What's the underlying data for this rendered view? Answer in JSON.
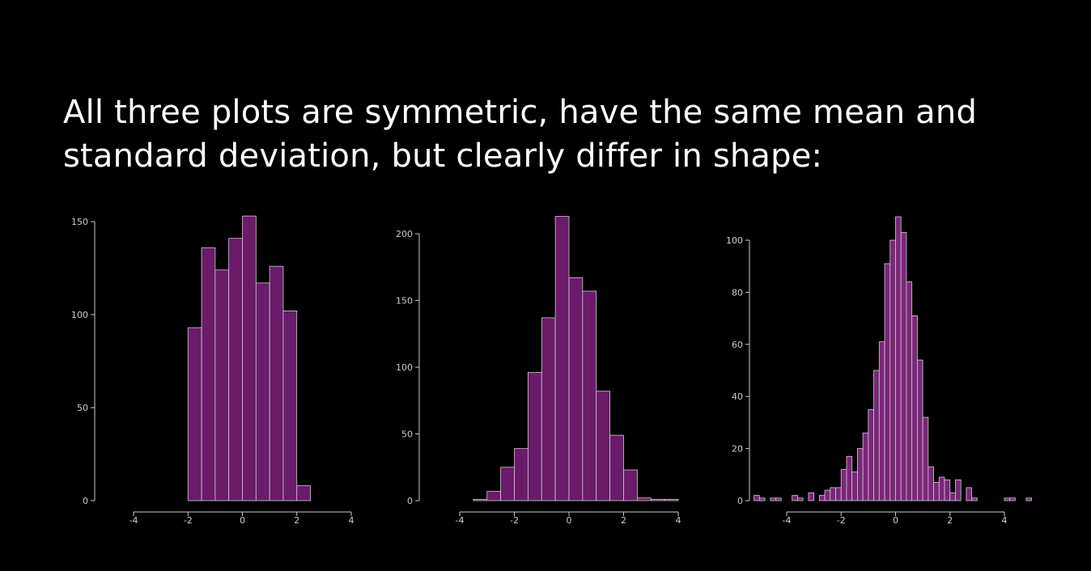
{
  "heading": "All three plots are symmetric, have the same mean and standard deviation, but clearly differ in shape:",
  "colors": {
    "background": "#000000",
    "bar_fill": "#6a1b6a",
    "bar_fill_light": "#7b267b",
    "bar_stroke": "#cccccc",
    "axis": "#cccccc"
  },
  "chart_data": [
    {
      "type": "bar",
      "title": "",
      "xlabel": "",
      "ylabel": "",
      "xlim": [
        -4,
        4
      ],
      "ylim": [
        0,
        150
      ],
      "x_ticks": [
        -4,
        -2,
        0,
        2,
        4
      ],
      "y_ticks": [
        0,
        50,
        100,
        150
      ],
      "bin_edges": [
        -2.0,
        -1.5,
        -1.0,
        -0.5,
        0.0,
        0.5,
        1.0,
        1.5,
        2.0,
        2.5
      ],
      "values": [
        93,
        136,
        124,
        141,
        153,
        117,
        126,
        102,
        8
      ]
    },
    {
      "type": "bar",
      "title": "",
      "xlabel": "",
      "ylabel": "",
      "xlim": [
        -4,
        4
      ],
      "ylim": [
        0,
        200
      ],
      "x_ticks": [
        -4,
        -2,
        0,
        2,
        4
      ],
      "y_ticks": [
        0,
        50,
        100,
        150,
        200
      ],
      "bin_edges": [
        -3.5,
        -3.0,
        -2.5,
        -2.0,
        -1.5,
        -1.0,
        -0.5,
        0.0,
        0.5,
        1.0,
        1.5,
        2.0,
        2.5,
        3.0,
        3.5,
        4.0
      ],
      "values": [
        1,
        7,
        25,
        39,
        96,
        137,
        213,
        167,
        157,
        82,
        49,
        23,
        2,
        1,
        1
      ]
    },
    {
      "type": "bar",
      "title": "",
      "xlabel": "",
      "ylabel": "",
      "xlim": [
        -4,
        4
      ],
      "ylim": [
        0,
        100
      ],
      "x_ticks": [
        -4,
        -2,
        0,
        2,
        4
      ],
      "y_ticks": [
        0,
        20,
        40,
        60,
        80,
        100
      ],
      "bin_edges": [
        -5.2,
        -5.0,
        -4.8,
        -4.6,
        -4.4,
        -4.2,
        -4.0,
        -3.8,
        -3.6,
        -3.4,
        -3.2,
        -3.0,
        -2.8,
        -2.6,
        -2.4,
        -2.2,
        -2.0,
        -1.8,
        -1.6,
        -1.4,
        -1.2,
        -1.0,
        -0.8,
        -0.6,
        -0.4,
        -0.2,
        0.0,
        0.2,
        0.4,
        0.6,
        0.8,
        1.0,
        1.2,
        1.4,
        1.6,
        1.8,
        2.0,
        2.2,
        2.4,
        2.6,
        2.8,
        3.0,
        3.2,
        3.4,
        3.6,
        3.8,
        4.0,
        4.2,
        4.4,
        4.6,
        4.8,
        5.0
      ],
      "values": [
        2,
        1,
        0,
        1,
        1,
        0,
        0,
        2,
        1,
        0,
        3,
        0,
        2,
        4,
        5,
        5,
        12,
        17,
        11,
        20,
        26,
        35,
        50,
        61,
        91,
        100,
        109,
        103,
        84,
        71,
        54,
        32,
        13,
        7,
        9,
        8,
        3,
        8,
        0,
        5,
        1,
        0,
        0,
        0,
        0,
        0,
        1,
        1,
        0,
        0,
        1
      ]
    }
  ]
}
